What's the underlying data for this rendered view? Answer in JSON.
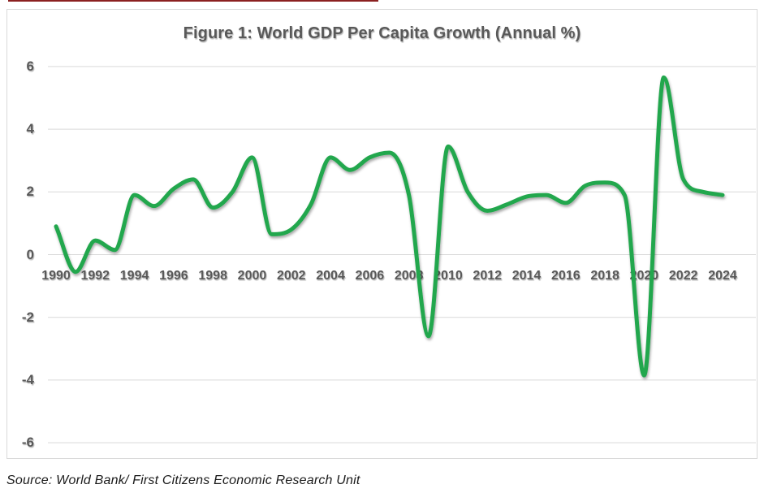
{
  "page": {
    "top_accent_color": "#8B2020"
  },
  "header": {
    "title": "Figure 1: World GDP Per Capita Growth (Annual %)"
  },
  "footer": {
    "source": "Source: World Bank/ First Citizens Economic Research Unit"
  },
  "chart_data": {
    "type": "line",
    "title": "Figure 1: World GDP Per Capita Growth (Annual %)",
    "series_name": "World GDP per capita growth (annual %)",
    "x": [
      1990,
      1991,
      1992,
      1993,
      1994,
      1995,
      1996,
      1997,
      1998,
      1999,
      2000,
      2001,
      2002,
      2003,
      2004,
      2005,
      2006,
      2007,
      2008,
      2009,
      2010,
      2011,
      2012,
      2013,
      2014,
      2015,
      2016,
      2017,
      2018,
      2019,
      2020,
      2021,
      2022,
      2023,
      2024
    ],
    "values": [
      0.9,
      -0.55,
      0.45,
      0.15,
      1.9,
      1.55,
      2.1,
      2.4,
      1.5,
      2.0,
      3.1,
      0.65,
      0.8,
      1.6,
      3.1,
      2.7,
      3.1,
      3.25,
      1.9,
      -2.6,
      3.45,
      2.0,
      1.4,
      1.6,
      1.85,
      1.9,
      1.65,
      2.2,
      2.3,
      1.9,
      -3.85,
      5.65,
      2.4,
      2.0,
      1.9
    ],
    "x_tick_labels": [
      "1990",
      "1992",
      "1994",
      "1996",
      "1998",
      "2000",
      "2002",
      "2004",
      "2006",
      "2008",
      "2010",
      "2012",
      "2014",
      "2016",
      "2018",
      "2020",
      "2022",
      "2024"
    ],
    "y_ticks": [
      6,
      4,
      2,
      0,
      -2,
      -4,
      -6
    ],
    "ylim": [
      -6,
      6
    ],
    "xlabel": "",
    "ylabel": "",
    "grid": "horizontal",
    "legend": "none",
    "line_color": "#22A74D",
    "grid_color": "#D9D9D9",
    "axis_text_color": "#595959",
    "title_color": "#595959"
  }
}
